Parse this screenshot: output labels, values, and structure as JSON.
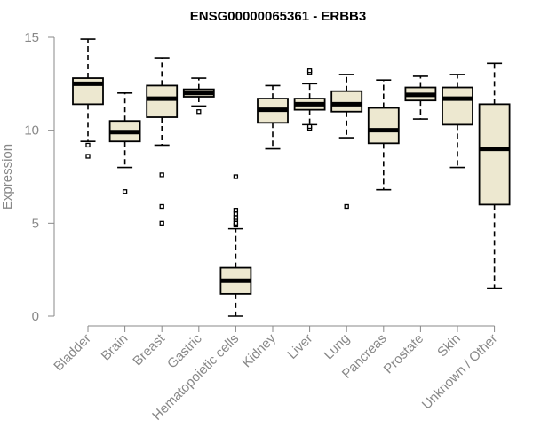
{
  "chart_data": {
    "type": "boxplot",
    "title": "ENSG00000065361 - ERBB3",
    "xlabel": "",
    "ylabel": "Expression",
    "ylim": [
      0,
      15
    ],
    "yticks": [
      0,
      5,
      10,
      15
    ],
    "colors": {
      "box_fill": "#ede8d0",
      "stroke": "#000000",
      "axis": "#888888"
    },
    "categories": [
      "Bladder",
      "Brain",
      "Breast",
      "Gastric",
      "Hematopoietic cells",
      "Kidney",
      "Liver",
      "Lung",
      "Pancreas",
      "Prostate",
      "Skin",
      "Unknown / Other"
    ],
    "boxes": [
      {
        "name": "Bladder",
        "whisker_low": 9.4,
        "q1": 11.4,
        "median": 12.5,
        "q3": 12.8,
        "whisker_high": 14.9,
        "outliers": [
          9.2,
          8.6
        ]
      },
      {
        "name": "Brain",
        "whisker_low": 8.0,
        "q1": 9.4,
        "median": 9.9,
        "q3": 10.5,
        "whisker_high": 12.0,
        "outliers": [
          6.7
        ]
      },
      {
        "name": "Breast",
        "whisker_low": 9.2,
        "q1": 10.7,
        "median": 11.7,
        "q3": 12.4,
        "whisker_high": 13.9,
        "outliers": [
          7.6,
          5.9,
          5.0
        ]
      },
      {
        "name": "Gastric",
        "whisker_low": 11.3,
        "q1": 11.8,
        "median": 12.0,
        "q3": 12.2,
        "whisker_high": 12.8,
        "outliers": [
          11.0
        ]
      },
      {
        "name": "Hematopoietic cells",
        "whisker_low": 0.0,
        "q1": 1.2,
        "median": 1.9,
        "q3": 2.6,
        "whisker_high": 4.7,
        "outliers": [
          4.9,
          5.0,
          5.2,
          5.3,
          5.5,
          5.7,
          7.5
        ]
      },
      {
        "name": "Kidney",
        "whisker_low": 9.0,
        "q1": 10.4,
        "median": 11.1,
        "q3": 11.7,
        "whisker_high": 12.4,
        "outliers": []
      },
      {
        "name": "Liver",
        "whisker_low": 10.3,
        "q1": 11.1,
        "median": 11.4,
        "q3": 11.7,
        "whisker_high": 12.5,
        "outliers": [
          13.1,
          13.2,
          10.1,
          10.2
        ]
      },
      {
        "name": "Lung",
        "whisker_low": 9.6,
        "q1": 11.0,
        "median": 11.4,
        "q3": 12.1,
        "whisker_high": 13.0,
        "outliers": [
          5.9
        ]
      },
      {
        "name": "Pancreas",
        "whisker_low": 6.8,
        "q1": 9.3,
        "median": 10.0,
        "q3": 11.2,
        "whisker_high": 12.7,
        "outliers": []
      },
      {
        "name": "Prostate",
        "whisker_low": 10.6,
        "q1": 11.6,
        "median": 11.9,
        "q3": 12.3,
        "whisker_high": 12.9,
        "outliers": []
      },
      {
        "name": "Skin",
        "whisker_low": 8.0,
        "q1": 10.3,
        "median": 11.7,
        "q3": 12.3,
        "whisker_high": 13.0,
        "outliers": []
      },
      {
        "name": "Unknown / Other",
        "whisker_low": 1.5,
        "q1": 6.0,
        "median": 9.0,
        "q3": 11.4,
        "whisker_high": 13.6,
        "outliers": []
      }
    ]
  }
}
